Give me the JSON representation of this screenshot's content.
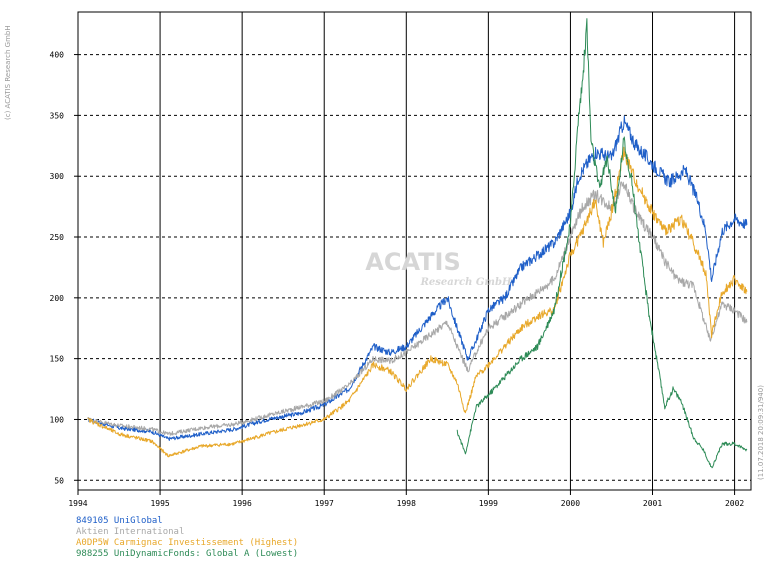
{
  "chart_data": {
    "type": "line",
    "title": "",
    "xlabel": "",
    "ylabel": "",
    "xlim": [
      1994.0,
      2002.2
    ],
    "ylim": [
      42,
      435
    ],
    "x_ticks": [
      "1994",
      "1995",
      "1996",
      "1997",
      "1998",
      "1999",
      "2000",
      "2001",
      "2002"
    ],
    "y_ticks": [
      "50",
      "100",
      "150",
      "200",
      "250",
      "300",
      "350",
      "400"
    ],
    "grid": true,
    "watermark": {
      "main": "ACATIS",
      "sub": "Research GmbH"
    },
    "copyright": "(c) ACATIS Research GmbH",
    "side_note": "(11.07.2018 20:09:31/940)",
    "series": [
      {
        "name": "849105 UniGlobal",
        "color": "#1f5fc8",
        "points": [
          [
            1994.12,
            100
          ],
          [
            1994.5,
            93
          ],
          [
            1994.9,
            90
          ],
          [
            1995.1,
            84
          ],
          [
            1995.5,
            88
          ],
          [
            1995.9,
            92
          ],
          [
            1996.3,
            100
          ],
          [
            1996.7,
            105
          ],
          [
            1997.0,
            112
          ],
          [
            1997.3,
            125
          ],
          [
            1997.6,
            160
          ],
          [
            1997.8,
            155
          ],
          [
            1998.0,
            160
          ],
          [
            1998.3,
            185
          ],
          [
            1998.5,
            200
          ],
          [
            1998.62,
            175
          ],
          [
            1998.75,
            150
          ],
          [
            1998.85,
            165
          ],
          [
            1999.0,
            190
          ],
          [
            1999.2,
            200
          ],
          [
            1999.4,
            225
          ],
          [
            1999.6,
            235
          ],
          [
            1999.8,
            245
          ],
          [
            2000.0,
            270
          ],
          [
            2000.1,
            300
          ],
          [
            2000.3,
            320
          ],
          [
            2000.5,
            315
          ],
          [
            2000.65,
            345
          ],
          [
            2000.8,
            325
          ],
          [
            2001.0,
            310
          ],
          [
            2001.2,
            295
          ],
          [
            2001.4,
            305
          ],
          [
            2001.55,
            280
          ],
          [
            2001.65,
            255
          ],
          [
            2001.72,
            215
          ],
          [
            2001.85,
            255
          ],
          [
            2002.0,
            265
          ],
          [
            2002.15,
            260
          ]
        ]
      },
      {
        "name": "Aktien International",
        "color": "#a8a8a8",
        "points": [
          [
            1994.12,
            100
          ],
          [
            1994.5,
            95
          ],
          [
            1994.9,
            92
          ],
          [
            1995.1,
            88
          ],
          [
            1995.5,
            93
          ],
          [
            1995.9,
            96
          ],
          [
            1996.3,
            103
          ],
          [
            1996.7,
            110
          ],
          [
            1997.0,
            115
          ],
          [
            1997.3,
            128
          ],
          [
            1997.6,
            150
          ],
          [
            1997.8,
            148
          ],
          [
            1998.0,
            155
          ],
          [
            1998.3,
            170
          ],
          [
            1998.5,
            180
          ],
          [
            1998.62,
            160
          ],
          [
            1998.75,
            140
          ],
          [
            1998.85,
            155
          ],
          [
            1999.0,
            175
          ],
          [
            1999.2,
            185
          ],
          [
            1999.4,
            195
          ],
          [
            1999.6,
            205
          ],
          [
            1999.8,
            215
          ],
          [
            2000.0,
            250
          ],
          [
            2000.15,
            275
          ],
          [
            2000.3,
            285
          ],
          [
            2000.5,
            275
          ],
          [
            2000.65,
            295
          ],
          [
            2000.8,
            270
          ],
          [
            2001.0,
            250
          ],
          [
            2001.15,
            230
          ],
          [
            2001.3,
            215
          ],
          [
            2001.5,
            210
          ],
          [
            2001.7,
            165
          ],
          [
            2001.85,
            195
          ],
          [
            2002.0,
            190
          ],
          [
            2002.15,
            180
          ]
        ]
      },
      {
        "name": "A0DP5W Carmignac Investissement (Highest)",
        "color": "#e8a82a",
        "points": [
          [
            1994.12,
            100
          ],
          [
            1994.5,
            88
          ],
          [
            1994.9,
            82
          ],
          [
            1995.1,
            70
          ],
          [
            1995.5,
            78
          ],
          [
            1995.9,
            80
          ],
          [
            1996.3,
            88
          ],
          [
            1996.7,
            95
          ],
          [
            1997.0,
            100
          ],
          [
            1997.3,
            115
          ],
          [
            1997.6,
            145
          ],
          [
            1997.8,
            140
          ],
          [
            1998.0,
            125
          ],
          [
            1998.3,
            150
          ],
          [
            1998.5,
            145
          ],
          [
            1998.62,
            130
          ],
          [
            1998.72,
            105
          ],
          [
            1998.85,
            135
          ],
          [
            1999.0,
            145
          ],
          [
            1999.2,
            160
          ],
          [
            1999.4,
            175
          ],
          [
            1999.6,
            185
          ],
          [
            1999.8,
            190
          ],
          [
            2000.0,
            235
          ],
          [
            2000.15,
            255
          ],
          [
            2000.3,
            280
          ],
          [
            2000.4,
            245
          ],
          [
            2000.5,
            270
          ],
          [
            2000.65,
            320
          ],
          [
            2000.8,
            295
          ],
          [
            2001.0,
            270
          ],
          [
            2001.15,
            255
          ],
          [
            2001.35,
            265
          ],
          [
            2001.5,
            245
          ],
          [
            2001.65,
            220
          ],
          [
            2001.72,
            170
          ],
          [
            2001.85,
            205
          ],
          [
            2002.0,
            215
          ],
          [
            2002.15,
            205
          ]
        ]
      },
      {
        "name": "988255 UniDynamicFonds: Global A (Lowest)",
        "color": "#2e8b57",
        "points": [
          [
            1998.62,
            90
          ],
          [
            1998.72,
            72
          ],
          [
            1998.85,
            110
          ],
          [
            1999.0,
            120
          ],
          [
            1999.2,
            135
          ],
          [
            1999.4,
            150
          ],
          [
            1999.6,
            160
          ],
          [
            1999.8,
            190
          ],
          [
            2000.0,
            260
          ],
          [
            2000.1,
            350
          ],
          [
            2000.15,
            380
          ],
          [
            2000.2,
            425
          ],
          [
            2000.25,
            330
          ],
          [
            2000.35,
            290
          ],
          [
            2000.45,
            315
          ],
          [
            2000.55,
            270
          ],
          [
            2000.65,
            330
          ],
          [
            2000.75,
            295
          ],
          [
            2000.85,
            240
          ],
          [
            2000.95,
            190
          ],
          [
            2001.05,
            150
          ],
          [
            2001.15,
            110
          ],
          [
            2001.25,
            125
          ],
          [
            2001.35,
            115
          ],
          [
            2001.5,
            85
          ],
          [
            2001.62,
            75
          ],
          [
            2001.72,
            60
          ],
          [
            2001.85,
            80
          ],
          [
            2002.0,
            80
          ],
          [
            2002.15,
            75
          ]
        ]
      }
    ]
  }
}
